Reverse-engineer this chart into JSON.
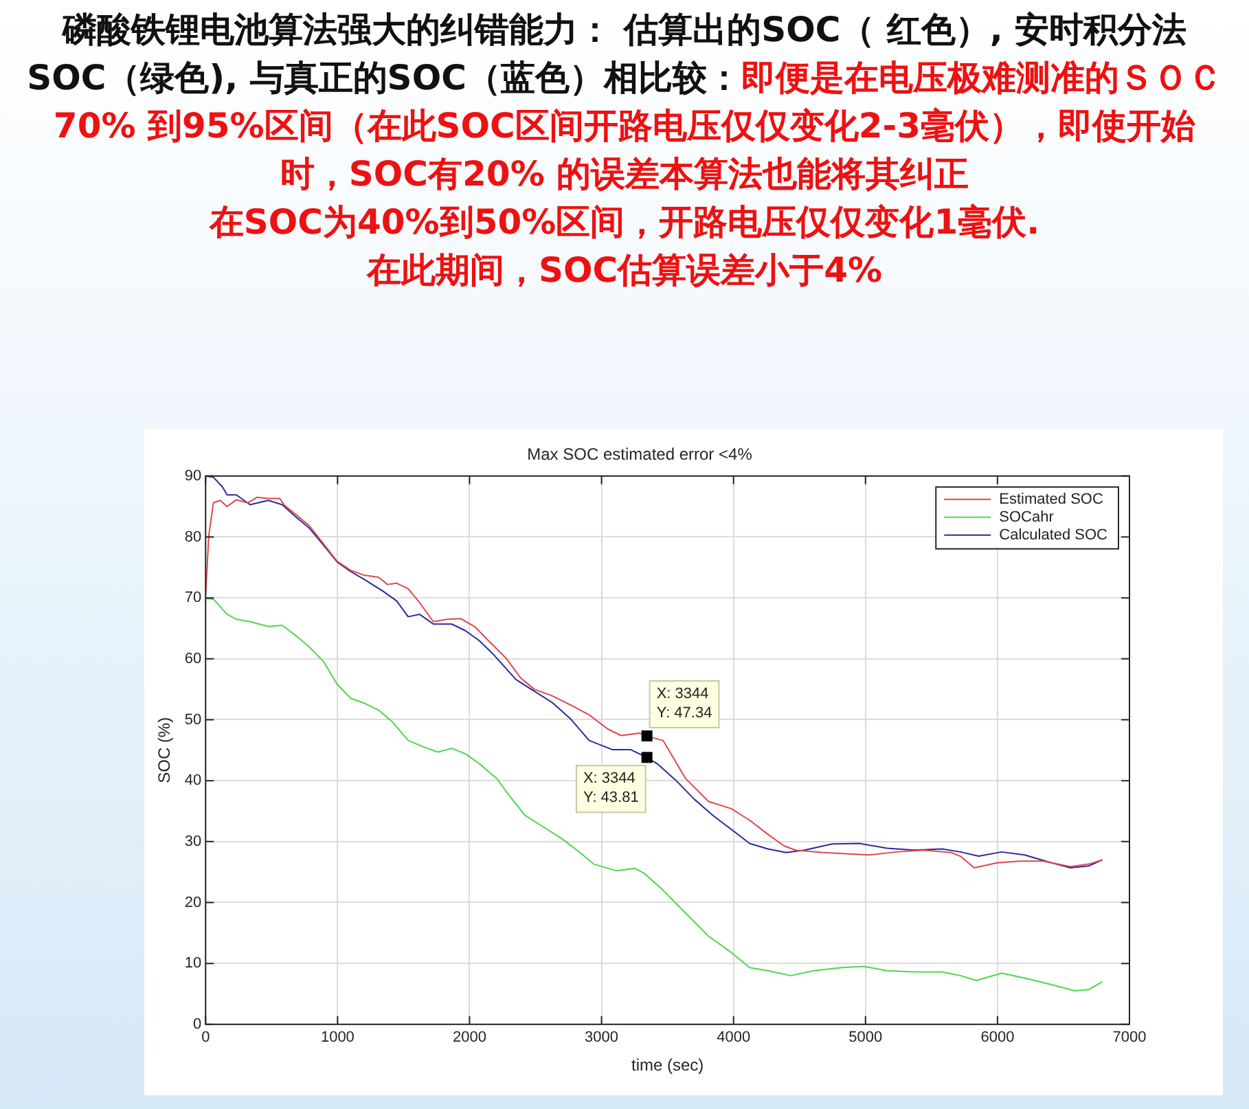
{
  "chart_data": {
    "type": "line",
    "title": "Max SOC estimated error <4%",
    "xlabel": "time (sec)",
    "ylabel": "SOC (%)",
    "annotations": [
      "磷酸铁锂电池算法强大的纠错能力： 估算出的SOC（ 红色）, 安时积分法 SOC（绿色), 与真正的SOC（蓝色）相比较：",
      "即便是在电压极难测准的ＳＯＣ70% 到95%区间（在此SOC区间开路电压仅仅变化2-3毫伏），即使开始时，SOC有20% 的误差本算法也能将其纠正",
      "在SOC为40%到50%区间，开路电压仅仅变化1毫伏.",
      "在此期间，SOC估算误差小于4%",
      {
        "text": "X: 3344\nY: 47.34",
        "x": 3344,
        "y": 47.34
      },
      {
        "text": "X: 3344\nY: 43.81",
        "x": 3344,
        "y": 43.81
      }
    ],
    "series": [
      {
        "name": "Estimated SOC",
        "color": "#e0474c",
        "x": [
          0,
          24,
          59,
          111,
          163,
          233,
          319,
          389,
          476,
          563,
          597,
          684,
          788,
          892,
          997,
          1101,
          1205,
          1309,
          1378,
          1448,
          1535,
          1622,
          1726,
          1830,
          1934,
          2038,
          2142,
          2281,
          2385,
          2490,
          2628,
          2767,
          2906,
          3045,
          3149,
          3288,
          3344,
          3466,
          3635,
          3809,
          3983,
          4122,
          4260,
          4382,
          4469,
          4677,
          4851,
          5024,
          5233,
          5441,
          5649,
          5719,
          5823,
          5997,
          6170,
          6344,
          6552,
          6691,
          6795
        ],
        "values": [
          70.3,
          80.2,
          85.6,
          86,
          85,
          86.1,
          85.6,
          86.5,
          86.3,
          86.3,
          85.2,
          83.7,
          81.8,
          78.9,
          76,
          74.5,
          73.7,
          73.4,
          72.2,
          72.4,
          71.5,
          69.2,
          66.1,
          66.5,
          66.6,
          65.3,
          63,
          60,
          56.9,
          55,
          53.9,
          52.4,
          50.8,
          48.5,
          47.4,
          47.8,
          47.3,
          46.6,
          40.4,
          36.6,
          35.4,
          33.5,
          31.2,
          29.3,
          28.6,
          28.2,
          28,
          27.8,
          28.3,
          28.6,
          28.2,
          27.6,
          25.7,
          26.5,
          26.8,
          26.8,
          25.9,
          26.3,
          27
        ]
      },
      {
        "name": "SOCahr",
        "color": "#4cd84c",
        "x": [
          0,
          59,
          163,
          233,
          337,
          476,
          580,
          684,
          788,
          892,
          997,
          1101,
          1205,
          1309,
          1413,
          1535,
          1656,
          1760,
          1865,
          1969,
          2073,
          2212,
          2281,
          2420,
          2559,
          2698,
          2837,
          2941,
          3115,
          3253,
          3323,
          3462,
          3635,
          3809,
          3983,
          4122,
          4260,
          4434,
          4608,
          4816,
          4990,
          5163,
          5372,
          5580,
          5719,
          5840,
          6031,
          6205,
          6413,
          6587,
          6691,
          6795
        ],
        "values": [
          69.9,
          69.8,
          67.3,
          66.5,
          66.1,
          65.3,
          65.5,
          63.8,
          61.9,
          59.6,
          55.8,
          53.5,
          52.7,
          51.6,
          49.7,
          46.6,
          45.5,
          44.7,
          45.3,
          44.4,
          42.8,
          40.2,
          38.1,
          34.3,
          32.4,
          30.5,
          28.2,
          26.3,
          25.2,
          25.6,
          24.8,
          22.1,
          18.3,
          14.5,
          11.8,
          9.3,
          8.8,
          8,
          8.8,
          9.3,
          9.5,
          8.8,
          8.6,
          8.6,
          8,
          7.2,
          8.4,
          7.6,
          6.5,
          5.5,
          5.7,
          7
        ]
      },
      {
        "name": "Calculated SOC",
        "color": "#2a2a9c",
        "x": [
          0,
          59,
          128,
          163,
          233,
          337,
          476,
          580,
          684,
          788,
          892,
          997,
          1101,
          1205,
          1344,
          1448,
          1535,
          1622,
          1726,
          1865,
          1969,
          2073,
          2177,
          2351,
          2490,
          2628,
          2767,
          2906,
          3080,
          3219,
          3344,
          3427,
          3566,
          3705,
          3844,
          3983,
          4122,
          4260,
          4399,
          4538,
          4747,
          4955,
          5163,
          5372,
          5580,
          5719,
          5858,
          6031,
          6205,
          6378,
          6552,
          6691,
          6795
        ],
        "values": [
          90,
          89.8,
          88.2,
          86.9,
          86.9,
          85.3,
          86,
          85.3,
          83.3,
          81.4,
          78.7,
          75.9,
          74.3,
          73,
          71.1,
          69.5,
          66.9,
          67.3,
          65.7,
          65.7,
          64.6,
          63,
          60.8,
          56.6,
          54.7,
          52.8,
          50.1,
          46.6,
          45.1,
          45.1,
          43.8,
          42.7,
          40,
          36.9,
          34.3,
          32,
          29.7,
          28.8,
          28.2,
          28.6,
          29.6,
          29.7,
          28.9,
          28.6,
          28.8,
          28.3,
          27.6,
          28.3,
          27.8,
          26.7,
          25.7,
          26,
          27
        ]
      }
    ],
    "xlim": [
      0,
      7000
    ],
    "xticks": [
      0,
      1000,
      2000,
      3000,
      4000,
      5000,
      6000,
      7000
    ],
    "ylim": [
      0,
      90
    ],
    "yticks": [
      0,
      10,
      20,
      30,
      40,
      50,
      60,
      70,
      80,
      90
    ],
    "grid": true,
    "legend": "top right",
    "marker": "none",
    "line_style": "solid"
  }
}
